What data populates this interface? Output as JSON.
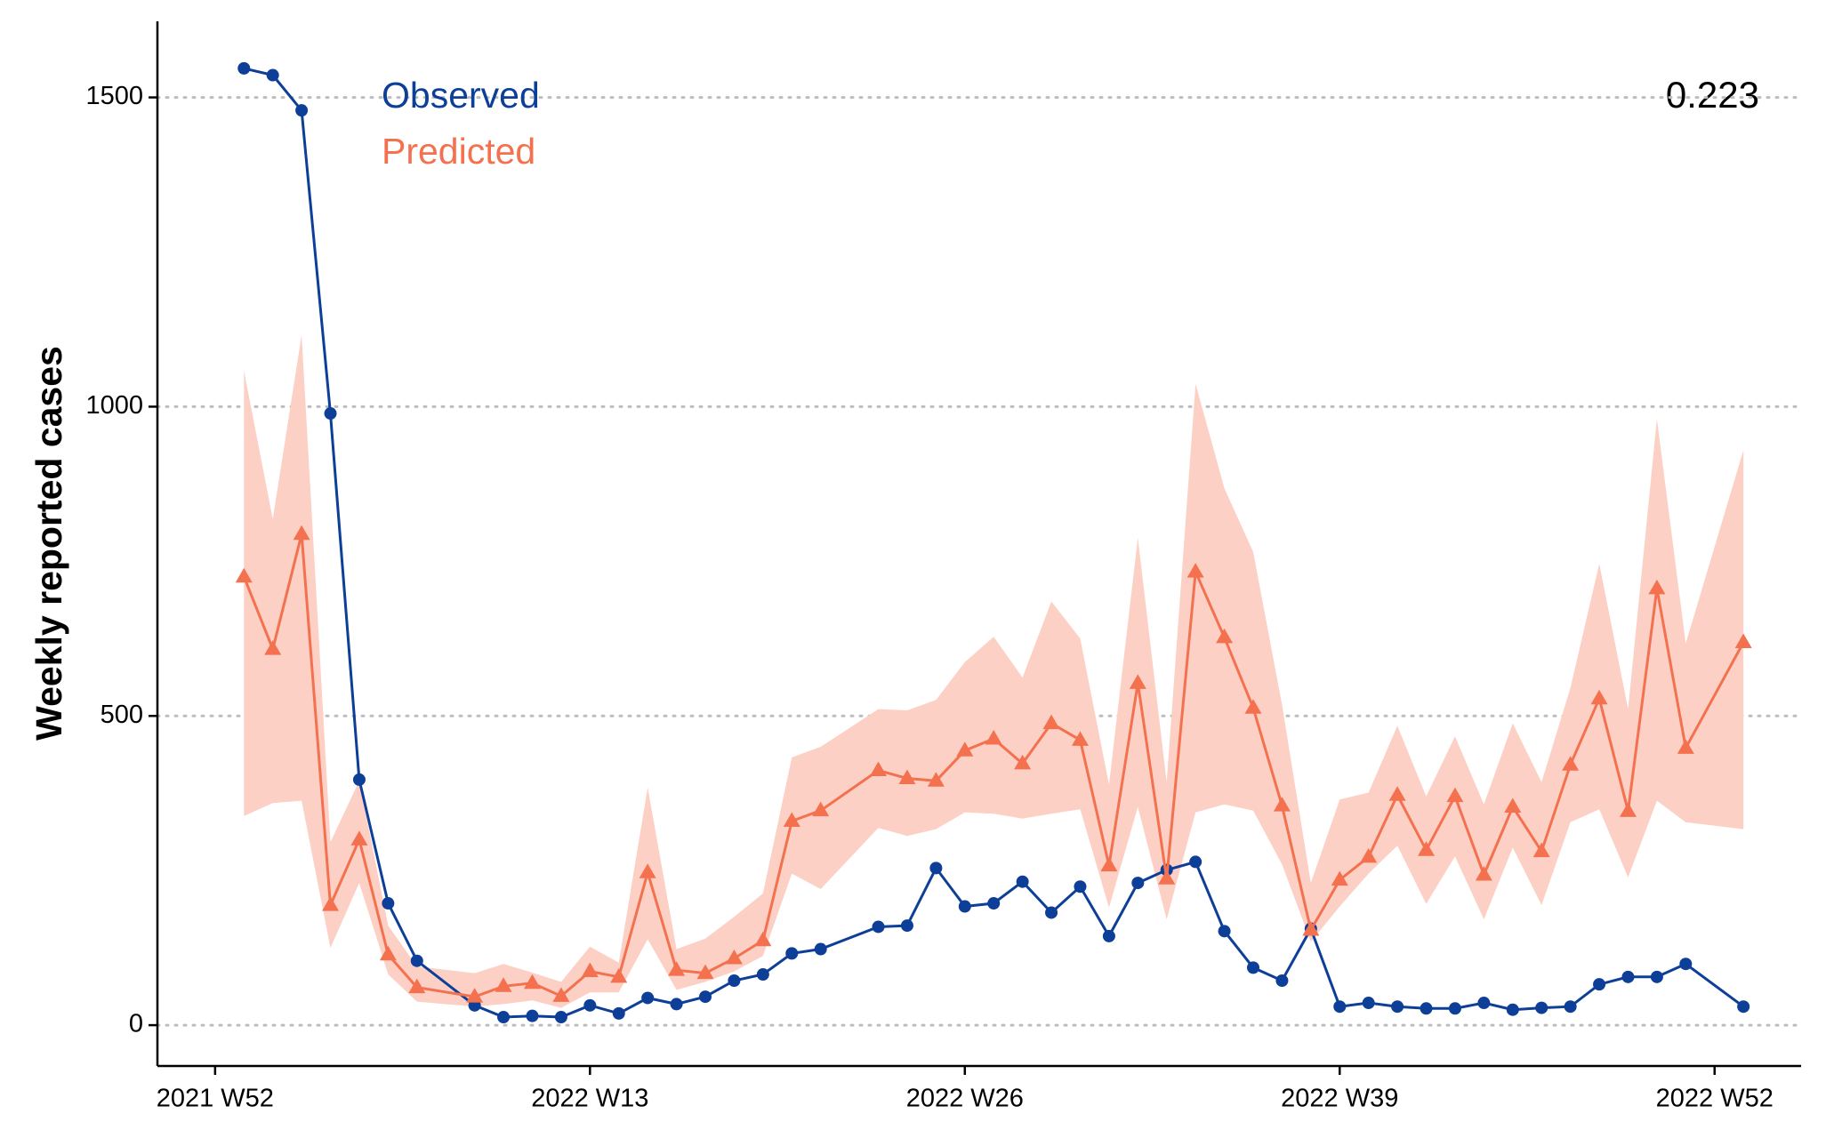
{
  "chart_data": {
    "type": "line",
    "y_label": "Weekly reported cases",
    "annotation": "0.223",
    "x": [
      "2022 W1",
      "2022 W2",
      "2022 W3",
      "2022 W4",
      "2022 W5",
      "2022 W6",
      "2022 W7",
      "2022 W9",
      "2022 W10",
      "2022 W11",
      "2022 W12",
      "2022 W13",
      "2022 W14",
      "2022 W15",
      "2022 W16",
      "2022 W17",
      "2022 W18",
      "2022 W19",
      "2022 W20",
      "2022 W21",
      "2022 W23",
      "2022 W24",
      "2022 W25",
      "2022 W26",
      "2022 W27",
      "2022 W28",
      "2022 W29",
      "2022 W30",
      "2022 W31",
      "2022 W32",
      "2022 W33",
      "2022 W34",
      "2022 W35",
      "2022 W36",
      "2022 W37",
      "2022 W38",
      "2022 W39",
      "2022 W40",
      "2022 W41",
      "2022 W42",
      "2022 W43",
      "2022 W44",
      "2022 W45",
      "2022 W46",
      "2022 W47",
      "2022 W48",
      "2022 W49",
      "2022 W50",
      "2022 W51",
      "2023 W1"
    ],
    "series": [
      {
        "name": "Observed",
        "color": "#0d3f98",
        "marker": "circle",
        "values": [
          1547,
          1536,
          1479,
          989,
          397,
          197,
          104,
          32,
          13,
          15,
          13,
          32,
          19,
          44,
          34,
          46,
          72,
          82,
          116,
          123,
          159,
          161,
          254,
          192,
          197,
          232,
          182,
          224,
          144,
          230,
          251,
          264,
          152,
          93,
          72,
          156,
          30,
          36,
          30,
          27,
          27,
          36,
          25,
          28,
          30,
          66,
          78,
          78,
          99,
          30
        ]
      },
      {
        "name": "Predicted",
        "color": "#f4714f",
        "marker": "triangle",
        "band_color": "#fcd0c5",
        "values": [
          725,
          608,
          794,
          194,
          300,
          114,
          61,
          46,
          63,
          68,
          47,
          87,
          78,
          247,
          89,
          84,
          108,
          137,
          330,
          347,
          412,
          399,
          395,
          444,
          463,
          423,
          488,
          461,
          258,
          553,
          237,
          733,
          627,
          513,
          355,
          154,
          235,
          272,
          372,
          283,
          370,
          243,
          353,
          281,
          421,
          528,
          346,
          706,
          448,
          619
        ],
        "lower": [
          338,
          359,
          363,
          125,
          230,
          82,
          38,
          30,
          34,
          40,
          28,
          53,
          53,
          139,
          57,
          70,
          87,
          112,
          245,
          220,
          319,
          306,
          317,
          344,
          342,
          334,
          342,
          349,
          190,
          353,
          171,
          344,
          357,
          347,
          260,
          135,
          192,
          245,
          290,
          196,
          273,
          171,
          287,
          194,
          328,
          349,
          239,
          363,
          328,
          317
        ],
        "upper": [
          1058,
          818,
          1116,
          296,
          395,
          161,
          95,
          84,
          99,
          85,
          70,
          127,
          101,
          384,
          123,
          140,
          175,
          213,
          433,
          450,
          511,
          509,
          526,
          587,
          628,
          562,
          685,
          625,
          389,
          788,
          393,
          1037,
          868,
          765,
          518,
          230,
          365,
          376,
          484,
          370,
          467,
          357,
          488,
          393,
          545,
          746,
          511,
          980,
          617,
          930
        ]
      }
    ],
    "xlim": [
      "2021 W50",
      "2023 W3"
    ],
    "xticks": [
      "2021 W52",
      "2022 W13",
      "2022 W26",
      "2022 W39",
      "2022 W52"
    ],
    "ylim": [
      -66,
      1623
    ],
    "yticks": [
      0,
      500,
      1000,
      1500
    ],
    "grid": true
  }
}
